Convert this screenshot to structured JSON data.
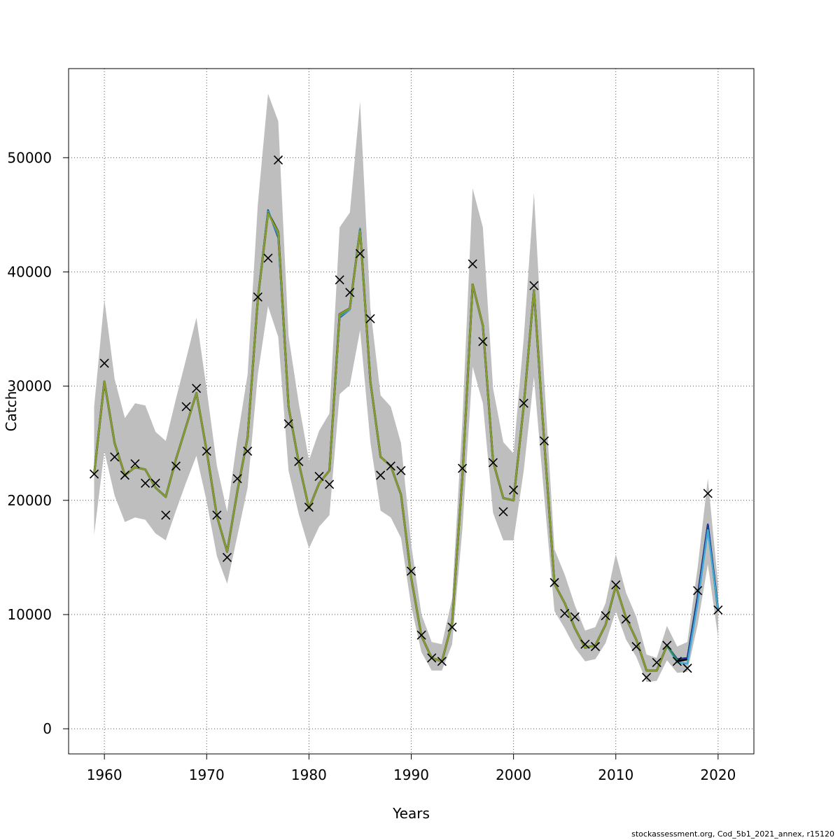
{
  "chart_data": {
    "type": "line",
    "xlabel": "Years",
    "ylabel": "Catch",
    "xlim": [
      1956.5,
      2023.5
    ],
    "ylim": [
      -2200,
      57800
    ],
    "x_ticks": [
      1960,
      1970,
      1980,
      1990,
      2000,
      2010,
      2020
    ],
    "y_ticks": [
      0,
      10000,
      20000,
      30000,
      40000,
      50000
    ],
    "grid": true,
    "years": [
      1959,
      1960,
      1961,
      1962,
      1963,
      1964,
      1965,
      1966,
      1967,
      1968,
      1969,
      1970,
      1971,
      1972,
      1973,
      1974,
      1975,
      1976,
      1977,
      1978,
      1979,
      1980,
      1981,
      1982,
      1983,
      1984,
      1985,
      1986,
      1987,
      1988,
      1989,
      1990,
      1991,
      1992,
      1993,
      1994,
      1995,
      1996,
      1997,
      1998,
      1999,
      2000,
      2001,
      2002,
      2003,
      2004,
      2005,
      2006,
      2007,
      2008,
      2009,
      2010,
      2011,
      2012,
      2013,
      2014,
      2015,
      2016,
      2017,
      2018,
      2019,
      2020
    ],
    "estimate": [
      22300,
      30400,
      25000,
      22200,
      22900,
      22700,
      21100,
      20300,
      23600,
      26500,
      29400,
      24300,
      18600,
      15500,
      20800,
      25500,
      37600,
      45200,
      43500,
      28200,
      23300,
      19300,
      21500,
      22600,
      36300,
      36800,
      43700,
      30400,
      23800,
      23000,
      20500,
      13200,
      8100,
      6200,
      5900,
      9300,
      22100,
      38900,
      35300,
      23400,
      20200,
      20000,
      28300,
      38400,
      25100,
      12700,
      11000,
      8800,
      7100,
      7300,
      9100,
      12500,
      9700,
      7800,
      5100,
      5100,
      7300,
      5900,
      6100,
      11500,
      17800,
      10400
    ],
    "upper": [
      28200,
      37600,
      30600,
      27200,
      28500,
      28300,
      26000,
      25200,
      28900,
      32400,
      36000,
      29700,
      23000,
      19000,
      25400,
      31000,
      45900,
      55600,
      53200,
      34400,
      28500,
      23500,
      26100,
      27600,
      43900,
      45200,
      54900,
      36800,
      29200,
      28200,
      25000,
      16100,
      10000,
      7600,
      7400,
      11400,
      27000,
      47300,
      43900,
      29800,
      25100,
      24100,
      34200,
      46900,
      30500,
      15700,
      13500,
      10800,
      8600,
      8900,
      11000,
      15300,
      11900,
      9800,
      6500,
      6200,
      9000,
      7200,
      7600,
      14100,
      21900,
      12600
    ],
    "lower": [
      17000,
      24300,
      20400,
      18100,
      18500,
      18300,
      17100,
      16500,
      19100,
      21600,
      23900,
      19900,
      15100,
      12700,
      16900,
      21100,
      31000,
      37000,
      34300,
      22600,
      18800,
      15800,
      17700,
      18700,
      29300,
      30100,
      34900,
      25100,
      19100,
      18500,
      16700,
      10700,
      6700,
      5100,
      5100,
      7400,
      17500,
      31700,
      28500,
      18900,
      16500,
      16500,
      22600,
      30800,
      20300,
      10300,
      8800,
      7100,
      5900,
      6100,
      7500,
      10300,
      7800,
      6300,
      4100,
      4200,
      6000,
      4900,
      5000,
      9100,
      14400,
      8000
    ],
    "observed": [
      22300,
      32000,
      23800,
      22200,
      23200,
      21500,
      21500,
      18700,
      23000,
      28200,
      29800,
      24300,
      18700,
      15000,
      21900,
      24300,
      37800,
      41200,
      49800,
      26700,
      23400,
      19400,
      22100,
      21400,
      39300,
      38200,
      41600,
      35900,
      22200,
      23000,
      22600,
      13800,
      8200,
      6200,
      5900,
      8900,
      22800,
      40700,
      33900,
      23300,
      19000,
      20900,
      28500,
      38800,
      25200,
      12800,
      10100,
      9800,
      7400,
      7200,
      9900,
      12600,
      9600,
      7200,
      4500,
      5800,
      7300,
      5900,
      5300,
      12100,
      20600,
      10400
    ],
    "series": [
      {
        "color": "#1f3a93",
        "values": [
          22300,
          30400,
          25000,
          22200,
          22900,
          22700,
          21100,
          20300,
          23600,
          26500,
          29400,
          24300,
          18600,
          15500,
          20800,
          25500,
          37600,
          45400,
          43000,
          28200,
          23300,
          19300,
          21500,
          22600,
          36000,
          36700,
          43800,
          30400,
          23800,
          23000,
          20500,
          13200,
          8100,
          6200,
          5900,
          9300,
          22100,
          38900,
          35300,
          23400,
          20200,
          20000,
          28300,
          38400,
          25100,
          12700,
          11000,
          8800,
          7100,
          7300,
          9100,
          12500,
          9700,
          7800,
          5100,
          5100,
          7300,
          6100,
          6200,
          11500,
          17900,
          10400
        ]
      },
      {
        "color": "#3fa9d6",
        "values": [
          22300,
          30400,
          25000,
          22200,
          22900,
          22700,
          21100,
          20300,
          23600,
          26500,
          29400,
          24300,
          18600,
          15500,
          20800,
          25500,
          37600,
          45300,
          43200,
          28200,
          23300,
          19300,
          21500,
          22600,
          36100,
          36700,
          43800,
          30400,
          23800,
          23000,
          20500,
          13200,
          8100,
          6200,
          5900,
          9300,
          22100,
          38900,
          35300,
          23400,
          20200,
          20000,
          28300,
          38400,
          25100,
          12700,
          11000,
          8800,
          7100,
          7300,
          9100,
          12500,
          9700,
          7800,
          5100,
          5100,
          7300,
          5800,
          5700,
          11000,
          17400,
          10400
        ]
      },
      {
        "color": "#2e8b57",
        "values": [
          22300,
          30400,
          25000,
          22200,
          22900,
          22700,
          21100,
          20300,
          23600,
          26500,
          29400,
          24300,
          18600,
          15500,
          20800,
          25500,
          37600,
          45200,
          43400,
          28200,
          23300,
          19300,
          21500,
          22600,
          36200,
          36800,
          43700,
          30400,
          23800,
          23000,
          20500,
          13200,
          8100,
          6200,
          5900,
          9300,
          22100,
          38900,
          35300,
          23400,
          20200,
          20000,
          28300,
          38400,
          25100,
          12700,
          11000,
          8800,
          7100,
          7300,
          9100,
          12500,
          9700,
          7800,
          5100,
          5100,
          7300,
          6000,
          null,
          null,
          null,
          null
        ]
      },
      {
        "color": "#8a9a2a",
        "values": [
          22300,
          30400,
          25000,
          22200,
          22900,
          22700,
          21100,
          20300,
          23600,
          26500,
          29400,
          24300,
          18600,
          15500,
          20800,
          25500,
          37600,
          45100,
          43500,
          28200,
          23300,
          19300,
          21500,
          22600,
          36300,
          36800,
          43600,
          30400,
          23800,
          23000,
          20500,
          13200,
          8100,
          6200,
          5900,
          9300,
          22100,
          38900,
          35300,
          23400,
          20200,
          20000,
          28300,
          38400,
          25100,
          12700,
          11000,
          8800,
          7100,
          7300,
          9100,
          12500,
          9700,
          7800,
          5100,
          5100,
          7300,
          null,
          null,
          null,
          null,
          null
        ]
      }
    ],
    "band_color": "#bebebe",
    "estimate_color": "#000000",
    "observed_marker": "x"
  },
  "footer": "stockassessment.org, Cod_5b1_2021_annex, r15120"
}
